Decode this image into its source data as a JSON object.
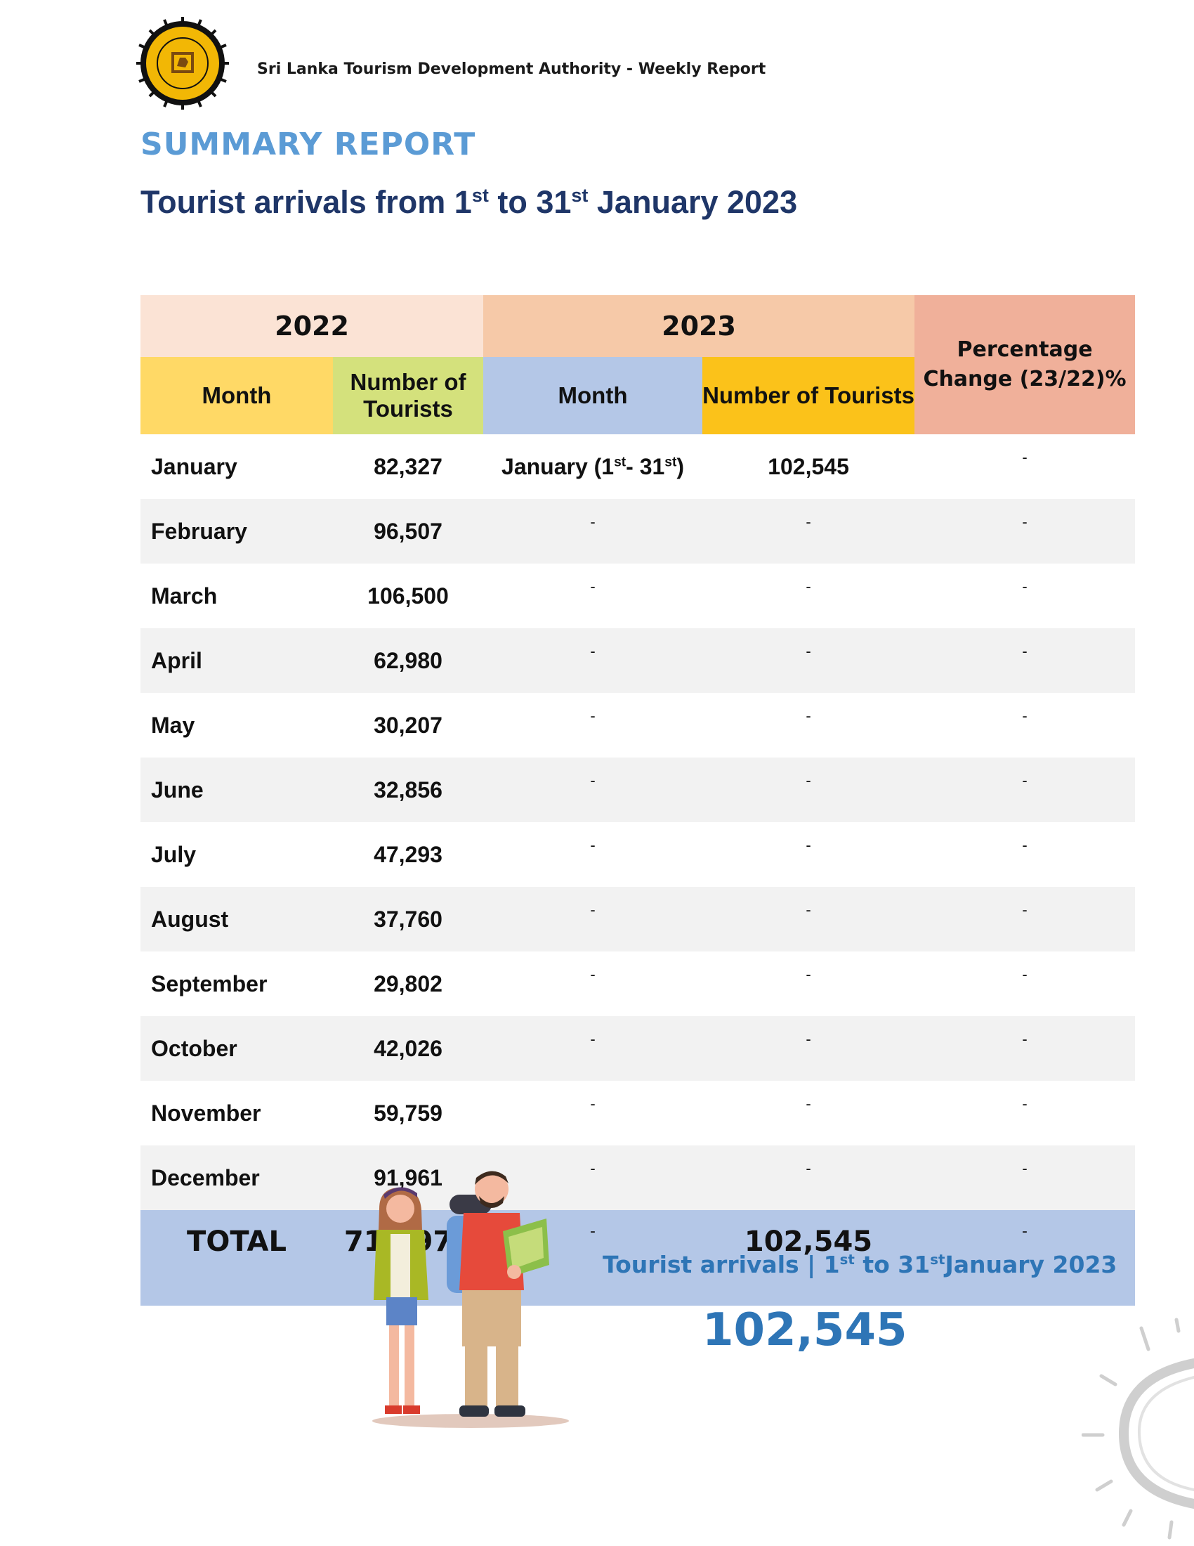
{
  "header": {
    "org_report": "Sri Lanka Tourism Development Authority - Weekly Report",
    "logo_label": "SRI LANKA TOURISM DEVELOPMENT AUTHORITY"
  },
  "title": "SUMMARY REPORT",
  "subtitle": {
    "pre": "Tourist arrivals from 1",
    "sup1": "st",
    "mid": " to 31",
    "sup2": "st",
    "post": " January 2023"
  },
  "table": {
    "year_2022": "2022",
    "year_2023": "2023",
    "pct_header": "Percentage Change (23/22)%",
    "col_month": "Month",
    "col_tourists": "Number of Tourists",
    "rows": [
      {
        "month": "January",
        "t2022": "82,327",
        "month2023": "January (1st- 31st)",
        "t2023": "102,545",
        "pct": "-"
      },
      {
        "month": "February",
        "t2022": "96,507",
        "month2023": "-",
        "t2023": "-",
        "pct": "-"
      },
      {
        "month": "March",
        "t2022": "106,500",
        "month2023": "-",
        "t2023": "-",
        "pct": "-"
      },
      {
        "month": "April",
        "t2022": "62,980",
        "month2023": "-",
        "t2023": "-",
        "pct": "-"
      },
      {
        "month": "May",
        "t2022": "30,207",
        "month2023": "-",
        "t2023": "-",
        "pct": "-"
      },
      {
        "month": "June",
        "t2022": "32,856",
        "month2023": "-",
        "t2023": "-",
        "pct": "-"
      },
      {
        "month": "July",
        "t2022": "47,293",
        "month2023": "-",
        "t2023": "-",
        "pct": "-"
      },
      {
        "month": "August",
        "t2022": "37,760",
        "month2023": "-",
        "t2023": "-",
        "pct": "-"
      },
      {
        "month": "September",
        "t2022": "29,802",
        "month2023": "-",
        "t2023": "-",
        "pct": "-"
      },
      {
        "month": "October",
        "t2022": "42,026",
        "month2023": "-",
        "t2023": "-",
        "pct": "-"
      },
      {
        "month": "November",
        "t2022": "59,759",
        "month2023": "-",
        "t2023": "-",
        "pct": "-"
      },
      {
        "month": "December",
        "t2022": "91,961",
        "month2023": "-",
        "t2023": "-",
        "pct": "-"
      }
    ],
    "jan2023": {
      "pre": "January (1",
      "sup1": "st",
      "mid": "- 31",
      "sup2": "st",
      "post": ")"
    },
    "total": {
      "label": "TOTAL",
      "t2022": "719,978",
      "month2023": "-",
      "t2023": "102,545",
      "pct": "-"
    }
  },
  "banner": {
    "pre": "Tourist arrivals | 1",
    "sup1": "st",
    "mid": " to 31",
    "sup2": "st",
    "post": "January 2023",
    "value": "102,545"
  },
  "colors": {
    "title_blue": "#5b9bd5",
    "subtitle_navy": "#1f3668",
    "banner_blue": "#2e75b6",
    "total_row": "#b4c7e7"
  }
}
